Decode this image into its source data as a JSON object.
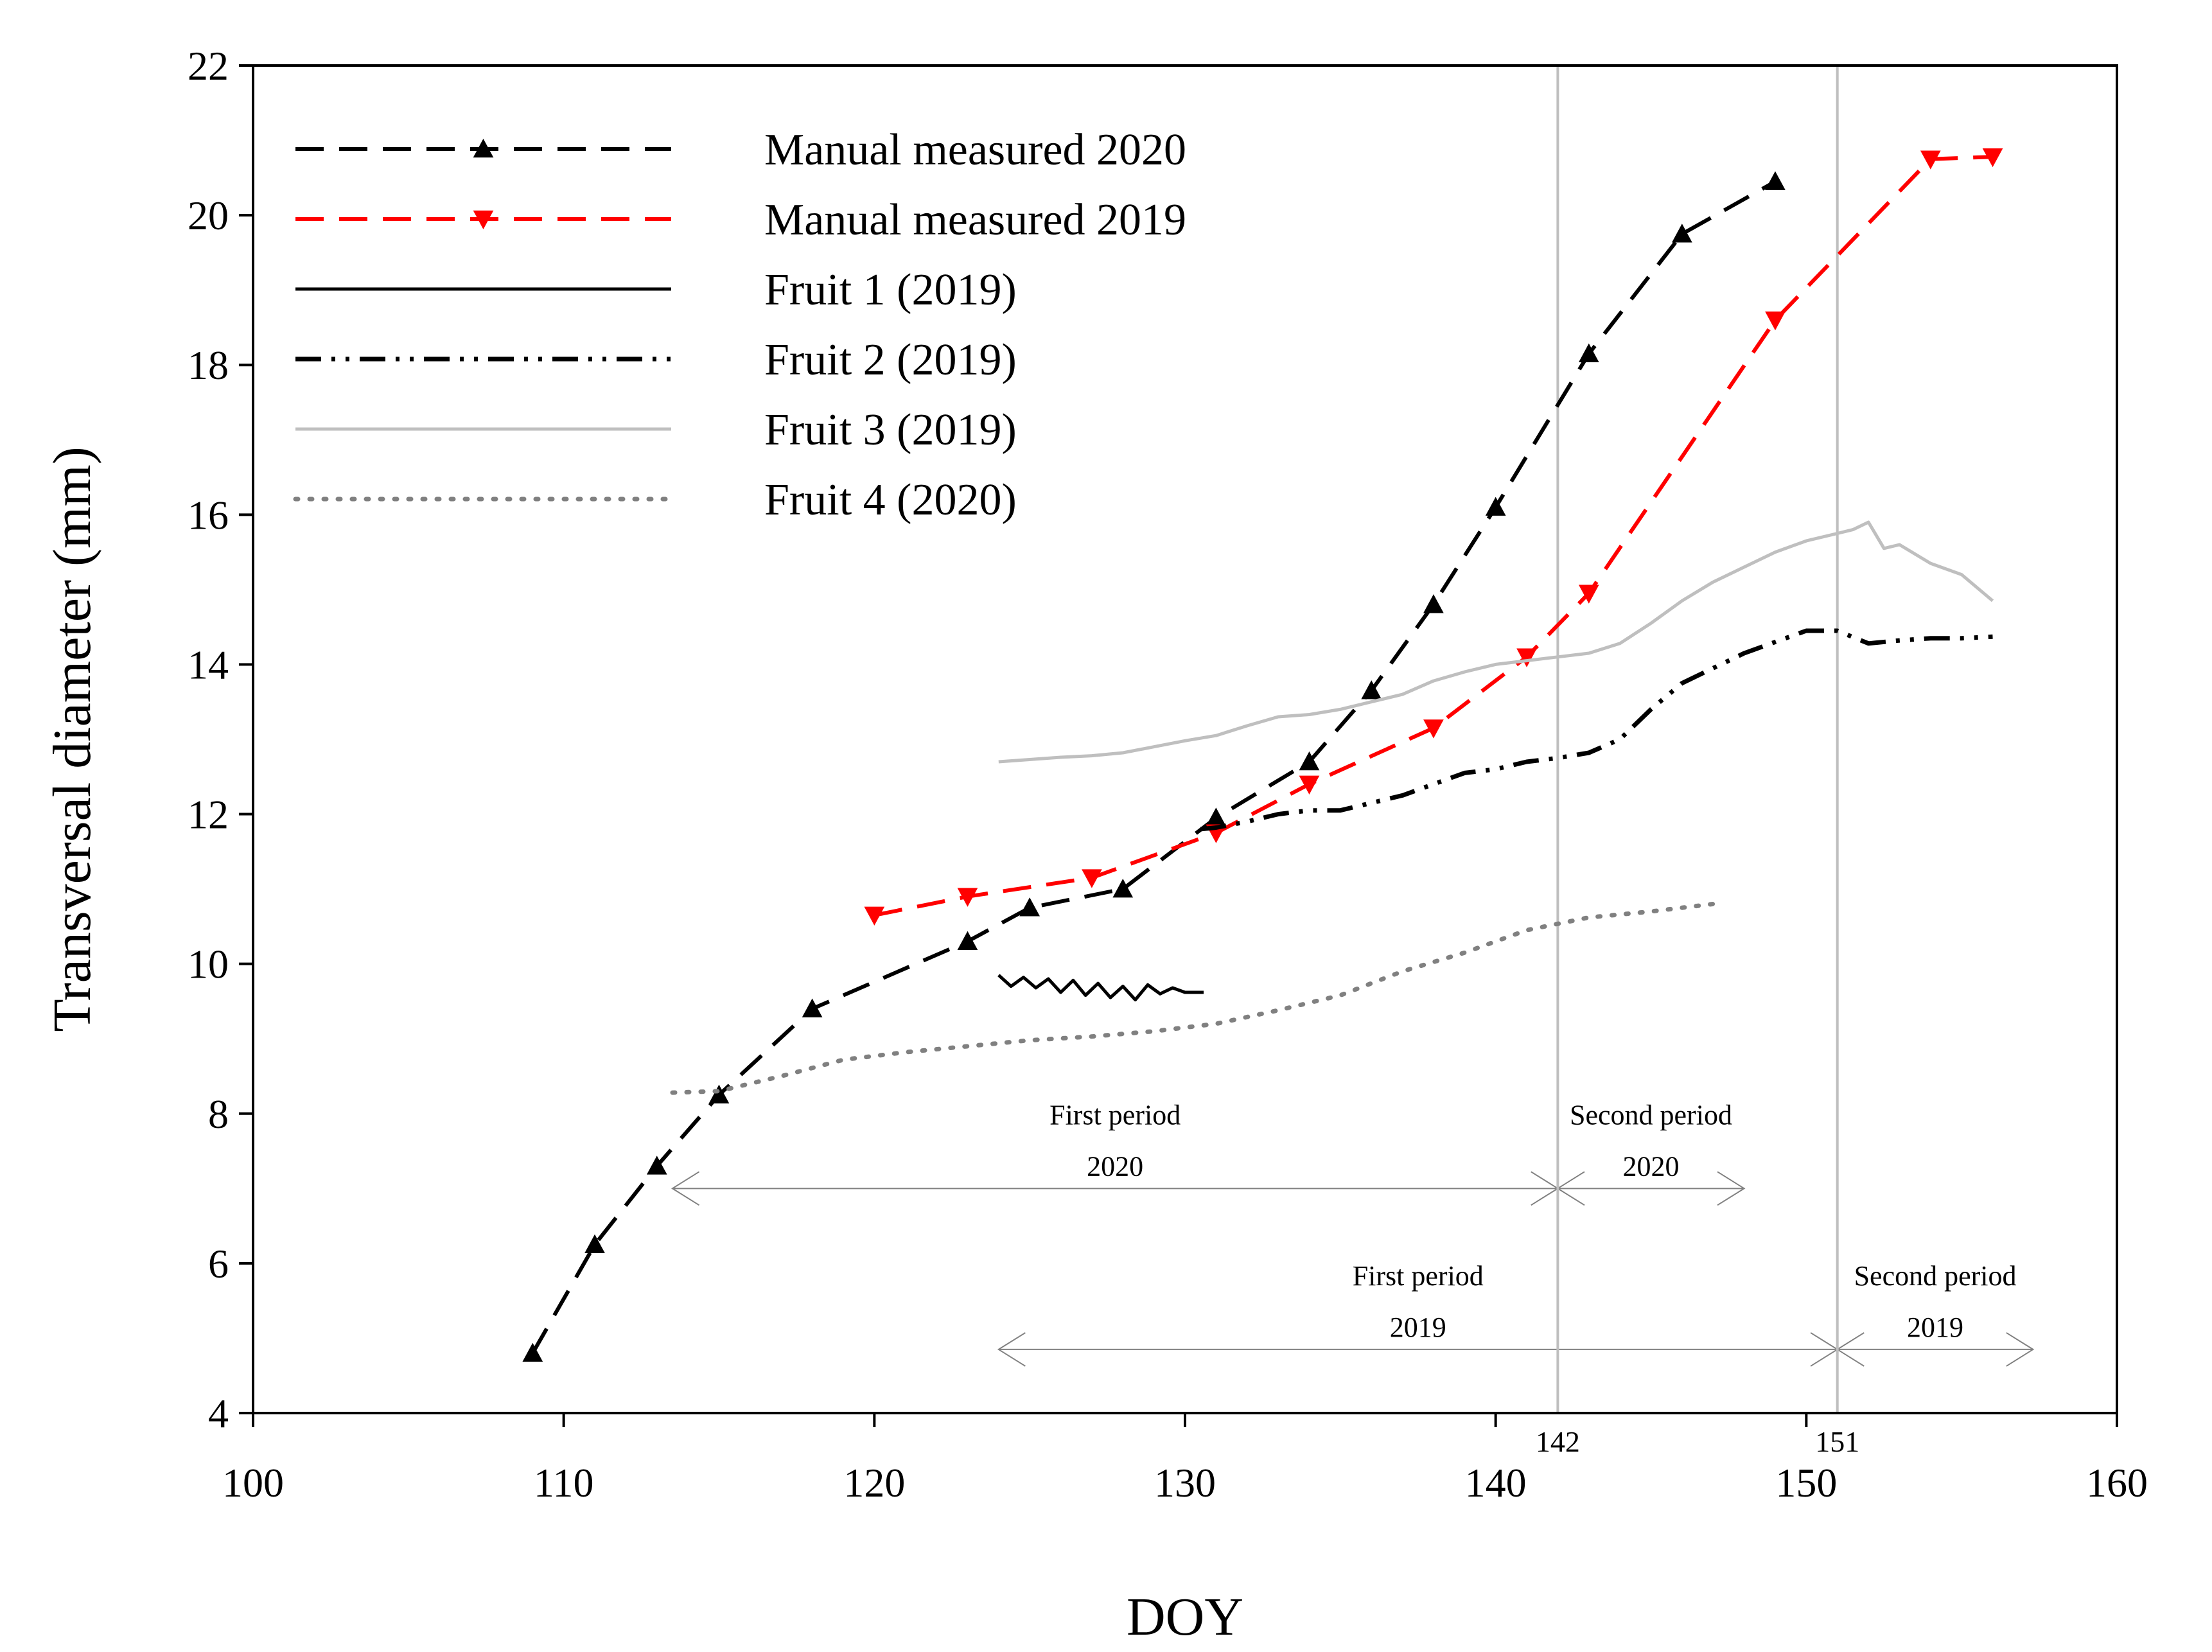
{
  "chart_data": {
    "type": "line",
    "title": "",
    "xlabel": "DOY",
    "ylabel": "Transversal diameter (mm)",
    "xlim": [
      100,
      160
    ],
    "ylim": [
      4,
      22
    ],
    "xticks": [
      100,
      110,
      120,
      130,
      140,
      150,
      160
    ],
    "yticks": [
      4,
      6,
      8,
      10,
      12,
      14,
      16,
      18,
      20,
      22
    ],
    "grid": false,
    "legend_position": "top-left",
    "series": [
      {
        "name": "Manual measured 2020",
        "color": "#000000",
        "style": "dashed",
        "marker": "triangle-up",
        "x": [
          109,
          111,
          113,
          115,
          118,
          123,
          125,
          128,
          131,
          134,
          136,
          138,
          140,
          143,
          146,
          149
        ],
        "y": [
          4.8,
          6.25,
          7.3,
          8.25,
          9.4,
          10.3,
          10.75,
          11.0,
          11.95,
          12.7,
          13.65,
          14.8,
          16.1,
          18.15,
          19.75,
          20.45
        ]
      },
      {
        "name": "Manual measured 2019",
        "color": "#ff0000",
        "style": "dashed",
        "marker": "triangle-down",
        "x": [
          120,
          123,
          127,
          131,
          134,
          138,
          141,
          143,
          149,
          154,
          156
        ],
        "y": [
          10.65,
          10.9,
          11.15,
          11.75,
          12.4,
          13.15,
          14.1,
          14.95,
          18.6,
          20.75,
          20.78
        ]
      },
      {
        "name": "Fruit 1 (2019)",
        "color": "#000000",
        "style": "solid",
        "marker": "none",
        "x": [
          124.0,
          124.4,
          124.8,
          125.2,
          125.6,
          126.0,
          126.4,
          126.8,
          127.2,
          127.6,
          128.0,
          128.4,
          128.8,
          129.2,
          129.6,
          130.0,
          130.6
        ],
        "y": [
          9.85,
          9.7,
          9.82,
          9.68,
          9.8,
          9.62,
          9.78,
          9.58,
          9.74,
          9.55,
          9.7,
          9.52,
          9.72,
          9.6,
          9.68,
          9.62,
          9.62
        ]
      },
      {
        "name": "Fruit 2 (2019)",
        "color": "#000000",
        "style": "dash-dot-dot",
        "marker": "none",
        "x": [
          130.5,
          131,
          132,
          133,
          134,
          135,
          136,
          137,
          138,
          139,
          140,
          141,
          142,
          143,
          144,
          145,
          146,
          147,
          148,
          149,
          150,
          151,
          152,
          153,
          154,
          155,
          156
        ],
        "y": [
          11.8,
          11.82,
          11.9,
          12.0,
          12.05,
          12.05,
          12.15,
          12.25,
          12.4,
          12.55,
          12.6,
          12.7,
          12.75,
          12.82,
          13.0,
          13.4,
          13.75,
          13.95,
          14.15,
          14.3,
          14.45,
          14.45,
          14.28,
          14.32,
          14.35,
          14.35,
          14.37
        ]
      },
      {
        "name": "Fruit 3 (2019)",
        "color": "#bfbfbf",
        "style": "solid",
        "marker": "none",
        "x": [
          124,
          125,
          126,
          127,
          128,
          129,
          130,
          131,
          132,
          133,
          134,
          135,
          136,
          137,
          138,
          139,
          140,
          141,
          142,
          143,
          144,
          145,
          146,
          147,
          148,
          149,
          150,
          151,
          151.5,
          152,
          152.5,
          153,
          154,
          155,
          156
        ],
        "y": [
          12.7,
          12.73,
          12.76,
          12.78,
          12.82,
          12.9,
          12.98,
          13.05,
          13.18,
          13.3,
          13.33,
          13.4,
          13.5,
          13.6,
          13.78,
          13.9,
          14.0,
          14.05,
          14.1,
          14.15,
          14.28,
          14.55,
          14.85,
          15.1,
          15.3,
          15.5,
          15.65,
          15.75,
          15.8,
          15.9,
          15.55,
          15.6,
          15.35,
          15.2,
          14.85
        ]
      },
      {
        "name": "Fruit 4 (2020)",
        "color": "#808080",
        "style": "dotted",
        "marker": "none",
        "x": [
          113.5,
          115,
          117,
          119,
          121,
          123,
          125,
          127,
          129,
          131,
          133,
          135,
          137,
          139,
          141,
          143,
          145,
          147
        ],
        "y": [
          8.28,
          8.3,
          8.5,
          8.72,
          8.82,
          8.9,
          8.98,
          9.03,
          9.1,
          9.2,
          9.38,
          9.58,
          9.9,
          10.15,
          10.45,
          10.62,
          10.7,
          10.8
        ]
      }
    ],
    "vertical_lines": [
      {
        "x": 142,
        "label": "142"
      },
      {
        "x": 151,
        "label": "151"
      }
    ],
    "period_annotations": [
      {
        "label": "First period",
        "year": "2020",
        "x_start": 113.5,
        "x_end": 142,
        "y": 7.0
      },
      {
        "label": "Second period",
        "year": "2020",
        "x_start": 142,
        "x_end": 148,
        "y": 7.0
      },
      {
        "label": "First period",
        "year": "2019",
        "x_start": 124,
        "x_end": 151,
        "y": 4.85
      },
      {
        "label": "Second period",
        "year": "2019",
        "x_start": 151,
        "x_end": 157.3,
        "y": 4.85
      }
    ]
  }
}
